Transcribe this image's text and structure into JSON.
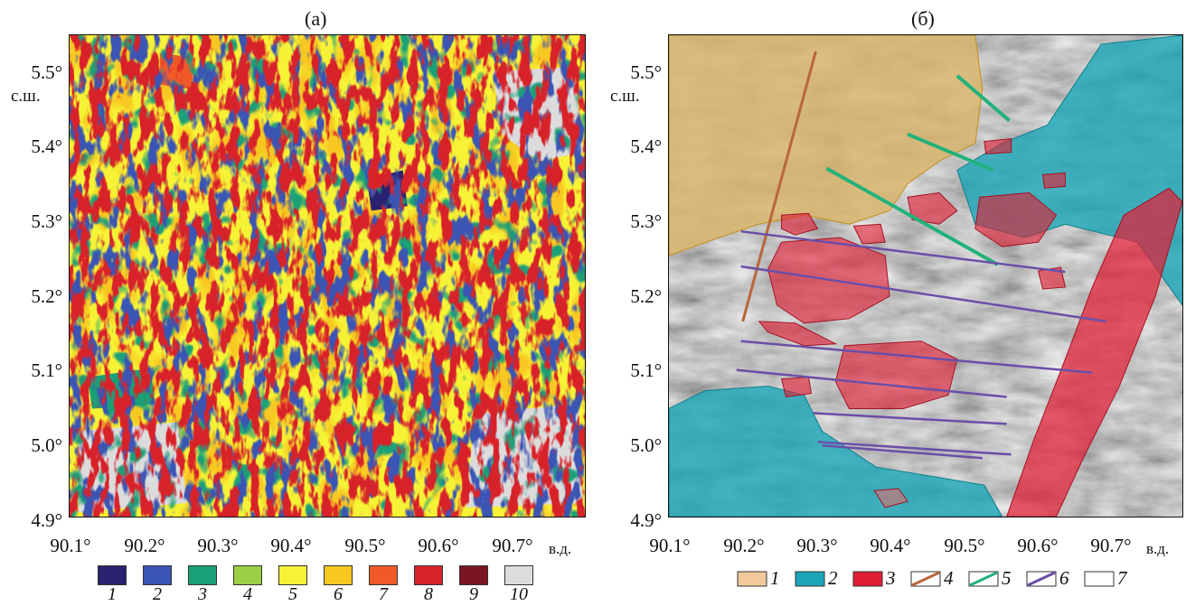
{
  "panels": {
    "a": {
      "title": "(а)"
    },
    "b": {
      "title": "(б)"
    }
  },
  "axes": {
    "y_labels": [
      "5.5°",
      "5.4°",
      "5.3°",
      "5.2°",
      "5.1°",
      "5.0°",
      "4.9°"
    ],
    "y_unit": "с.ш.",
    "x_labels": [
      "90.1°",
      "90.2°",
      "90.3°",
      "90.4°",
      "90.5°",
      "90.6°",
      "90.7°"
    ],
    "x_unit": "в.д."
  },
  "legend_a": {
    "items": [
      {
        "label": "1",
        "color": "#2a2170"
      },
      {
        "label": "2",
        "color": "#3a55b4"
      },
      {
        "label": "3",
        "color": "#1aa078"
      },
      {
        "label": "4",
        "color": "#9bcf45"
      },
      {
        "label": "5",
        "color": "#f6f235"
      },
      {
        "label": "6",
        "color": "#f8c820"
      },
      {
        "label": "7",
        "color": "#f05a28"
      },
      {
        "label": "8",
        "color": "#d8232a"
      },
      {
        "label": "9",
        "color": "#7a1523"
      },
      {
        "label": "10",
        "color": "#dcdcdc"
      }
    ]
  },
  "legend_b": {
    "items": [
      {
        "label": "1",
        "kind": "fill",
        "fill": "#f2c99a",
        "stroke": "#333333"
      },
      {
        "label": "2",
        "kind": "fill",
        "fill": "#1aa6b8",
        "stroke": "#333333"
      },
      {
        "label": "3",
        "kind": "fill",
        "fill": "#e01e34",
        "stroke": "#333333"
      },
      {
        "label": "4",
        "kind": "line",
        "fill": "#ffffff",
        "stroke": "#b9663a"
      },
      {
        "label": "5",
        "kind": "line",
        "fill": "#ffffff",
        "stroke": "#22b27a"
      },
      {
        "label": "6",
        "kind": "line",
        "fill": "#ffffff",
        "stroke": "#6a4fa8"
      },
      {
        "label": "7",
        "kind": "fill",
        "fill": "#ffffff",
        "stroke": "#333333"
      }
    ]
  }
}
